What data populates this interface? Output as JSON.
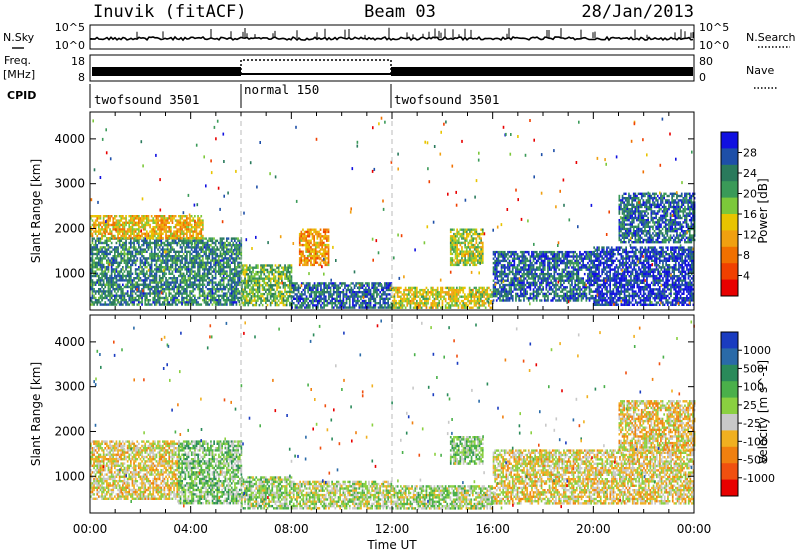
{
  "header": {
    "station": "Inuvik (fitACF)",
    "beam": "Beam 03",
    "date": "28/Jan/2013"
  },
  "status_panel": {
    "nsky_label": "N.Sky",
    "nsky_ticks": [
      "10^5",
      "10^0"
    ],
    "nsearch_label": "N.Search",
    "freq_label": "Freq.",
    "freq_unit": "[MHz]",
    "freq_ticks": [
      "18",
      "8"
    ],
    "nave_label": "Nave",
    "nave_ticks": [
      "80",
      "0"
    ],
    "cpid_label": "CPID",
    "cpid_segments": [
      {
        "label": "twofsound 3501",
        "start_hour": 0,
        "end_hour": 6
      },
      {
        "label": "normal 150",
        "start_hour": 6,
        "end_hour": 12
      },
      {
        "label": "twofsound 3501",
        "start_hour": 12,
        "end_hour": 24
      }
    ]
  },
  "colors": {
    "power": [
      "#1010e0",
      "#1e4fa8",
      "#2a7a5c",
      "#3a9a58",
      "#7cc83a",
      "#e8c400",
      "#f0a010",
      "#f07000",
      "#f04000",
      "#e80000"
    ],
    "velocity": [
      "#1a3cc0",
      "#2a6aa8",
      "#2a8a5a",
      "#4ab04a",
      "#8ad040",
      "#c8c8c8",
      "#f0b020",
      "#f08010",
      "#f05010",
      "#e80000"
    ]
  },
  "chart_data": [
    {
      "type": "heatmap",
      "name": "power",
      "xlabel": "Time UT",
      "ylabel": "Slant Range [km]",
      "xlim": [
        0,
        24
      ],
      "ylim": [
        180,
        4600
      ],
      "x_ticks": [
        "00:00",
        "04:00",
        "08:00",
        "12:00",
        "16:00",
        "20:00",
        "00:00"
      ],
      "y_ticks": [
        1000,
        2000,
        3000,
        4000
      ],
      "colorbar": {
        "label": "Power [dB]",
        "ticks": [
          "28",
          "24",
          "20",
          "16",
          "12",
          "8",
          "4"
        ],
        "range": [
          0,
          30
        ]
      },
      "regions": [
        {
          "t0": 0,
          "t1": 6,
          "r0": 300,
          "r1": 1800,
          "v": 22
        },
        {
          "t0": 0,
          "t1": 4.5,
          "r0": 1800,
          "r1": 2300,
          "v": 12
        },
        {
          "t0": 6,
          "t1": 8,
          "r0": 300,
          "r1": 1200,
          "v": 18
        },
        {
          "t0": 8,
          "t1": 12,
          "r0": 250,
          "r1": 800,
          "v": 24
        },
        {
          "t0": 8.3,
          "t1": 9.5,
          "r0": 1200,
          "r1": 2000,
          "v": 10
        },
        {
          "t0": 12,
          "t1": 16,
          "r0": 250,
          "r1": 700,
          "v": 14
        },
        {
          "t0": 14.3,
          "t1": 15.6,
          "r0": 1200,
          "r1": 2000,
          "v": 16
        },
        {
          "t0": 16,
          "t1": 20,
          "r0": 400,
          "r1": 1500,
          "v": 24
        },
        {
          "t0": 20,
          "t1": 24,
          "r0": 300,
          "r1": 1600,
          "v": 27
        },
        {
          "t0": 21,
          "t1": 24,
          "r0": 1700,
          "r1": 2800,
          "v": 24
        }
      ]
    },
    {
      "type": "heatmap",
      "name": "velocity",
      "xlabel": "Time UT",
      "ylabel": "Slant Range [km]",
      "xlim": [
        0,
        24
      ],
      "ylim": [
        180,
        4600
      ],
      "x_ticks": [
        "00:00",
        "04:00",
        "08:00",
        "12:00",
        "16:00",
        "20:00",
        "00:00"
      ],
      "y_ticks": [
        1000,
        2000,
        3000,
        4000
      ],
      "colorbar": {
        "label": "Velocity [m s^-1]",
        "ticks": [
          "1000",
          "500",
          "100",
          "25",
          "-25",
          "-100",
          "-500",
          "-1000"
        ],
        "range": [
          -1000,
          1000
        ]
      },
      "regions": [
        {
          "t0": 0,
          "t1": 3.5,
          "r0": 500,
          "r1": 1800,
          "v": -150
        },
        {
          "t0": 3.5,
          "t1": 6,
          "r0": 400,
          "r1": 1800,
          "v": 150
        },
        {
          "t0": 6,
          "t1": 8,
          "r0": 300,
          "r1": 1000,
          "v": 80
        },
        {
          "t0": 8,
          "t1": 12,
          "r0": 300,
          "r1": 900,
          "v": 0
        },
        {
          "t0": 12,
          "t1": 16,
          "r0": 300,
          "r1": 800,
          "v": 60
        },
        {
          "t0": 14.3,
          "t1": 15.6,
          "r0": 1300,
          "r1": 1900,
          "v": 150
        },
        {
          "t0": 16,
          "t1": 24,
          "r0": 400,
          "r1": 1600,
          "v": -150
        },
        {
          "t0": 21,
          "t1": 24,
          "r0": 1600,
          "r1": 2700,
          "v": -200
        }
      ]
    }
  ]
}
